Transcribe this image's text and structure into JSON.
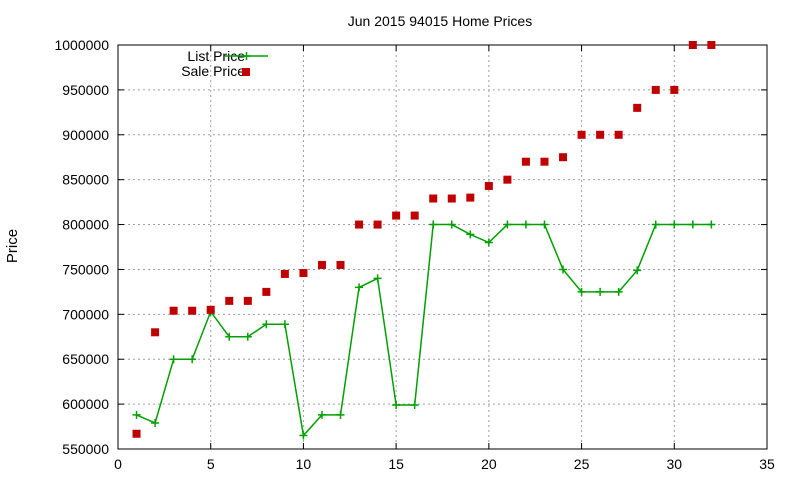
{
  "chart_data": {
    "type": "scatter",
    "title": "Jun 2015 94015 Home Prices",
    "xlabel": "",
    "ylabel": "Price",
    "xlim": [
      0,
      35
    ],
    "ylim": [
      550000,
      1000000
    ],
    "xticks": [
      0,
      5,
      10,
      15,
      20,
      25,
      30,
      35
    ],
    "yticks": [
      550000,
      600000,
      650000,
      700000,
      750000,
      800000,
      850000,
      900000,
      950000,
      1000000
    ],
    "grid": true,
    "legend_position": "top-left",
    "series": [
      {
        "name": "List Price",
        "style": "line-with-plus-markers",
        "color": "#00a000",
        "x": [
          1,
          2,
          3,
          4,
          5,
          6,
          7,
          8,
          9,
          10,
          11,
          12,
          13,
          14,
          15,
          16,
          17,
          18,
          19,
          20,
          21,
          22,
          23,
          24,
          25,
          26,
          27,
          28,
          29,
          30,
          31,
          32
        ],
        "y": [
          588000,
          579000,
          650000,
          650000,
          703000,
          675000,
          675000,
          689000,
          689000,
          565000,
          588000,
          588000,
          730000,
          740000,
          599000,
          599000,
          800000,
          800000,
          789000,
          780000,
          800000,
          800000,
          800000,
          750000,
          725000,
          725000,
          725000,
          749000,
          800000,
          800000,
          800000,
          800000
        ]
      },
      {
        "name": "Sale Price",
        "style": "square-markers",
        "color": "#c00000",
        "x": [
          1,
          2,
          3,
          4,
          5,
          6,
          7,
          8,
          9,
          10,
          11,
          12,
          13,
          14,
          15,
          16,
          17,
          18,
          19,
          20,
          21,
          22,
          23,
          24,
          25,
          26,
          27,
          28,
          29,
          30,
          31,
          32
        ],
        "y": [
          567000,
          680000,
          704000,
          704000,
          705000,
          715000,
          715000,
          725000,
          745000,
          746000,
          755000,
          755000,
          800000,
          800000,
          810000,
          810000,
          829000,
          829000,
          830000,
          843000,
          850000,
          870000,
          870000,
          875000,
          900000,
          900000,
          900000,
          930000,
          950000,
          950000,
          1000000,
          1000000
        ]
      }
    ]
  }
}
